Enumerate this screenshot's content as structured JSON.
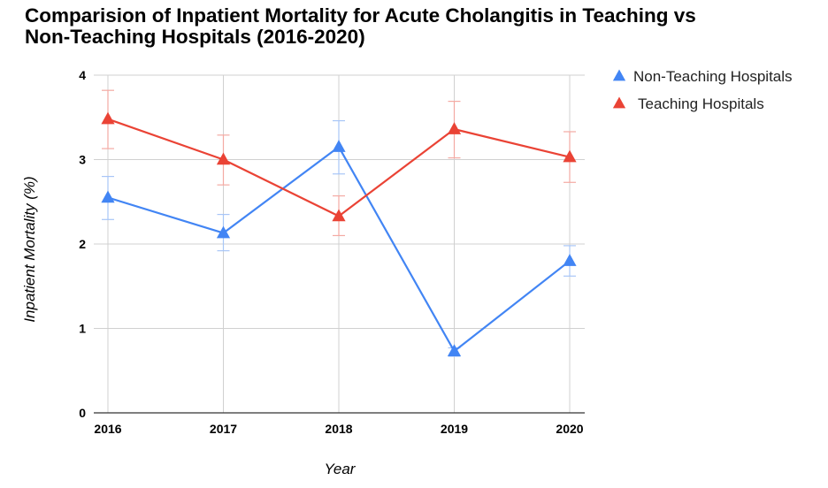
{
  "chart_data": {
    "type": "line",
    "title_line1": "Comparision of Inpatient Mortality for Acute Cholangitis in Teaching vs",
    "title_line2": "Non-Teaching Hospitals (2016-2020)",
    "xlabel": "Year",
    "ylabel": "Inpatient Mortality (%)",
    "categories": [
      "2016",
      "2017",
      "2018",
      "2019",
      "2020"
    ],
    "yticks": [
      "0",
      "1",
      "2",
      "3",
      "4"
    ],
    "ylim": [
      0,
      4
    ],
    "grid": true,
    "legend_position": "right",
    "series": [
      {
        "name": "Non-Teaching Hospitals",
        "color": "#4285f4",
        "values": [
          2.55,
          2.13,
          3.15,
          0.73,
          1.8
        ],
        "error_low": [
          2.29,
          1.92,
          2.83,
          0.67,
          1.62
        ],
        "error_high": [
          2.8,
          2.35,
          3.46,
          0.77,
          1.98
        ]
      },
      {
        "name": "Teaching Hospitals",
        "color": "#ea4335",
        "values": [
          3.48,
          3.0,
          2.33,
          3.36,
          3.03
        ],
        "error_low": [
          3.13,
          2.7,
          2.1,
          3.02,
          2.73
        ],
        "error_high": [
          3.82,
          3.29,
          2.57,
          3.69,
          3.33
        ]
      }
    ]
  }
}
